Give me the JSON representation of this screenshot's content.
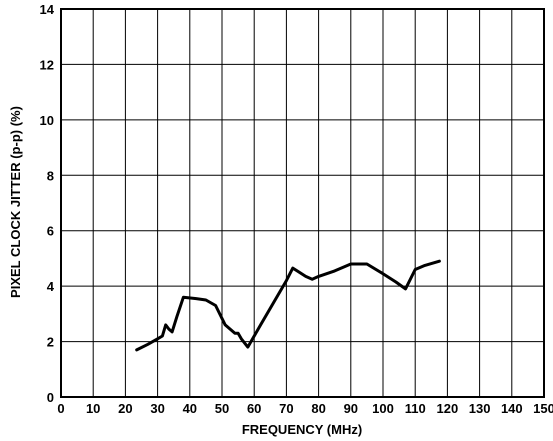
{
  "chart_data": {
    "type": "line",
    "title": "",
    "xlabel": "FREQUENCY (MHz)",
    "ylabel": "PIXEL CLOCK JITTER (p-p) (%)",
    "xlim": [
      0,
      150
    ],
    "ylim": [
      0,
      14
    ],
    "xticks": [
      "0",
      "10",
      "20",
      "30",
      "40",
      "50",
      "60",
      "70",
      "80",
      "90",
      "100",
      "110",
      "120",
      "130",
      "140",
      "150"
    ],
    "yticks": [
      "0",
      "2",
      "4",
      "6",
      "8",
      "10",
      "12",
      "14"
    ],
    "grid": true,
    "series": [
      {
        "x": [
          23.5,
          27,
          30,
          31.5,
          32.5,
          33.5,
          34.5,
          36,
          38,
          42,
          45,
          48,
          51,
          54,
          55,
          56,
          58,
          62,
          66,
          70,
          72,
          74,
          76,
          78,
          80,
          85,
          88,
          90,
          95,
          100,
          104,
          107,
          110,
          113,
          117.5
        ],
        "values": [
          1.7,
          1.9,
          2.1,
          2.2,
          2.6,
          2.45,
          2.35,
          2.9,
          3.6,
          3.55,
          3.5,
          3.3,
          2.6,
          2.3,
          2.3,
          2.1,
          1.8,
          2.6,
          3.4,
          4.2,
          4.65,
          4.5,
          4.35,
          4.25,
          4.35,
          4.55,
          4.7,
          4.8,
          4.8,
          4.45,
          4.15,
          3.9,
          4.6,
          4.75,
          4.9
        ]
      }
    ]
  }
}
